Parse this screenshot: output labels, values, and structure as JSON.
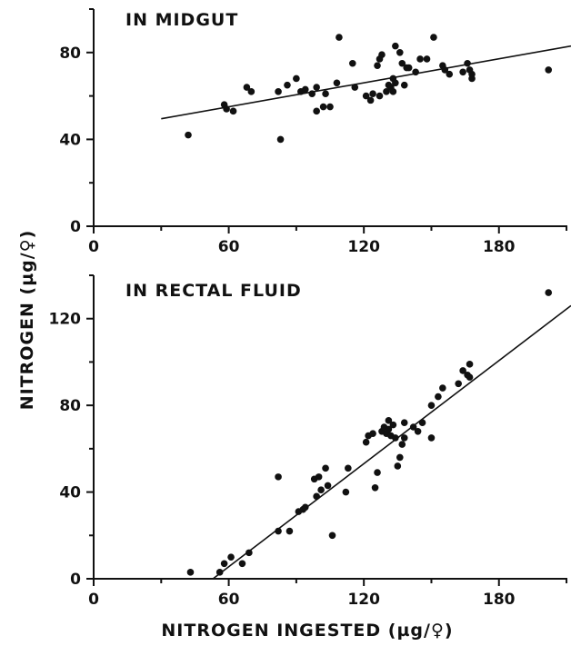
{
  "chart_data": [
    {
      "type": "scatter",
      "title": "IN MIDGUT",
      "xlim": [
        0,
        212
      ],
      "ylim": [
        0,
        100
      ],
      "xticks": [
        "0",
        "60",
        "120",
        "180"
      ],
      "xtick_values": [
        0,
        60,
        120,
        180
      ],
      "yticks": [
        "0",
        "40",
        "80"
      ],
      "ytick_values": [
        0,
        40,
        80
      ],
      "fit_line": {
        "x": [
          30,
          212
        ],
        "y": [
          49.5,
          83
        ]
      },
      "points": [
        [
          42,
          42
        ],
        [
          58,
          56
        ],
        [
          59,
          54
        ],
        [
          62,
          53
        ],
        [
          68,
          64
        ],
        [
          70,
          62
        ],
        [
          82,
          62
        ],
        [
          83,
          40
        ],
        [
          86,
          65
        ],
        [
          90,
          68
        ],
        [
          92,
          62
        ],
        [
          94,
          63
        ],
        [
          97,
          61
        ],
        [
          99,
          64
        ],
        [
          99,
          53
        ],
        [
          102,
          55
        ],
        [
          103,
          61
        ],
        [
          105,
          55
        ],
        [
          108,
          66
        ],
        [
          109,
          87
        ],
        [
          115,
          75
        ],
        [
          116,
          64
        ],
        [
          121,
          60
        ],
        [
          123,
          58
        ],
        [
          124,
          61
        ],
        [
          126,
          74
        ],
        [
          127,
          60
        ],
        [
          127,
          77
        ],
        [
          128,
          79
        ],
        [
          130,
          62
        ],
        [
          131,
          65
        ],
        [
          132,
          64
        ],
        [
          133,
          62
        ],
        [
          133,
          68
        ],
        [
          134,
          66
        ],
        [
          134,
          83
        ],
        [
          136,
          80
        ],
        [
          137,
          75
        ],
        [
          138,
          65
        ],
        [
          139,
          73
        ],
        [
          140,
          73
        ],
        [
          143,
          71
        ],
        [
          145,
          77
        ],
        [
          148,
          77
        ],
        [
          151,
          87
        ],
        [
          155,
          74
        ],
        [
          156,
          72
        ],
        [
          158,
          70
        ],
        [
          164,
          71
        ],
        [
          166,
          75
        ],
        [
          167,
          72
        ],
        [
          168,
          70
        ],
        [
          168,
          68
        ],
        [
          202,
          72
        ]
      ]
    },
    {
      "type": "scatter",
      "title": "IN RECTAL FLUID",
      "xlim": [
        0,
        212
      ],
      "ylim": [
        0,
        140
      ],
      "xticks": [
        "0",
        "60",
        "120",
        "180"
      ],
      "xtick_values": [
        0,
        60,
        120,
        180
      ],
      "yticks": [
        "0",
        "40",
        "80",
        "120"
      ],
      "ytick_values": [
        0,
        40,
        80,
        120
      ],
      "fit_line": {
        "x": [
          53,
          212
        ],
        "y": [
          0,
          126
        ]
      },
      "points": [
        [
          43,
          3
        ],
        [
          56,
          3
        ],
        [
          58,
          7
        ],
        [
          61,
          10
        ],
        [
          66,
          7
        ],
        [
          69,
          12
        ],
        [
          82,
          47
        ],
        [
          82,
          22
        ],
        [
          87,
          22
        ],
        [
          91,
          31
        ],
        [
          93,
          32
        ],
        [
          94,
          33
        ],
        [
          98,
          46
        ],
        [
          99,
          38
        ],
        [
          100,
          47
        ],
        [
          101,
          41
        ],
        [
          103,
          51
        ],
        [
          104,
          43
        ],
        [
          106,
          20
        ],
        [
          112,
          40
        ],
        [
          113,
          51
        ],
        [
          121,
          63
        ],
        [
          122,
          66
        ],
        [
          124,
          67
        ],
        [
          125,
          42
        ],
        [
          126,
          49
        ],
        [
          128,
          68
        ],
        [
          129,
          70
        ],
        [
          130,
          67
        ],
        [
          131,
          73
        ],
        [
          131,
          69
        ],
        [
          132,
          66
        ],
        [
          133,
          71
        ],
        [
          134,
          65
        ],
        [
          135,
          52
        ],
        [
          136,
          56
        ],
        [
          137,
          62
        ],
        [
          138,
          65
        ],
        [
          138,
          72
        ],
        [
          142,
          70
        ],
        [
          144,
          68
        ],
        [
          146,
          72
        ],
        [
          150,
          65
        ],
        [
          150,
          80
        ],
        [
          153,
          84
        ],
        [
          155,
          88
        ],
        [
          162,
          90
        ],
        [
          164,
          96
        ],
        [
          166,
          94
        ],
        [
          167,
          93
        ],
        [
          167,
          99
        ],
        [
          202,
          132
        ]
      ]
    }
  ],
  "ylabel": "NITROGEN  (µg/♀)",
  "xlabel": "NITROGEN  INGESTED  (µg/♀)"
}
